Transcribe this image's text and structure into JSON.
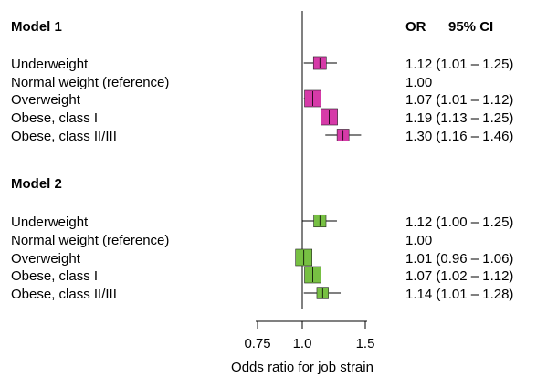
{
  "chart_data": {
    "type": "forest",
    "xlabel": "Odds ratio for job strain",
    "x_scale": "log",
    "x_ticks": [
      "0.75",
      "1.0",
      "1.5"
    ],
    "x_tick_values": [
      0.75,
      1.0,
      1.5
    ],
    "xlim": [
      0.75,
      1.5
    ],
    "reference_line": 1.0,
    "columns": {
      "or": "OR",
      "ci": "95% CI"
    },
    "groups": [
      {
        "title": "Model 1",
        "color": "#d63aa8",
        "rows": [
          {
            "label": "Underweight",
            "or": 1.12,
            "lo": 1.01,
            "hi": 1.25,
            "text": "1.12 (1.01 – 1.25)"
          },
          {
            "label": "Normal weight (reference)",
            "or": 1.0,
            "lo": null,
            "hi": null,
            "text": "1.00"
          },
          {
            "label": "Overweight",
            "or": 1.07,
            "lo": 1.01,
            "hi": 1.12,
            "text": "1.07 (1.01 – 1.12)"
          },
          {
            "label": "Obese, class I",
            "or": 1.19,
            "lo": 1.13,
            "hi": 1.25,
            "text": "1.19 (1.13 – 1.25)"
          },
          {
            "label": "Obese, class II/III",
            "or": 1.3,
            "lo": 1.16,
            "hi": 1.46,
            "text": "1.30 (1.16 – 1.46)"
          }
        ]
      },
      {
        "title": "Model 2",
        "color": "#77c043",
        "rows": [
          {
            "label": "Underweight",
            "or": 1.12,
            "lo": 1.0,
            "hi": 1.25,
            "text": "1.12 (1.00 – 1.25)"
          },
          {
            "label": "Normal weight (reference)",
            "or": 1.0,
            "lo": null,
            "hi": null,
            "text": "1.00"
          },
          {
            "label": "Overweight",
            "or": 1.01,
            "lo": 0.96,
            "hi": 1.06,
            "text": "1.01 (0.96 – 1.06)"
          },
          {
            "label": "Obese, class I",
            "or": 1.07,
            "lo": 1.02,
            "hi": 1.12,
            "text": "1.07 (1.02 – 1.12)"
          },
          {
            "label": "Obese, class II/III",
            "or": 1.14,
            "lo": 1.01,
            "hi": 1.28,
            "text": "1.14 (1.01 – 1.28)"
          }
        ]
      }
    ]
  }
}
